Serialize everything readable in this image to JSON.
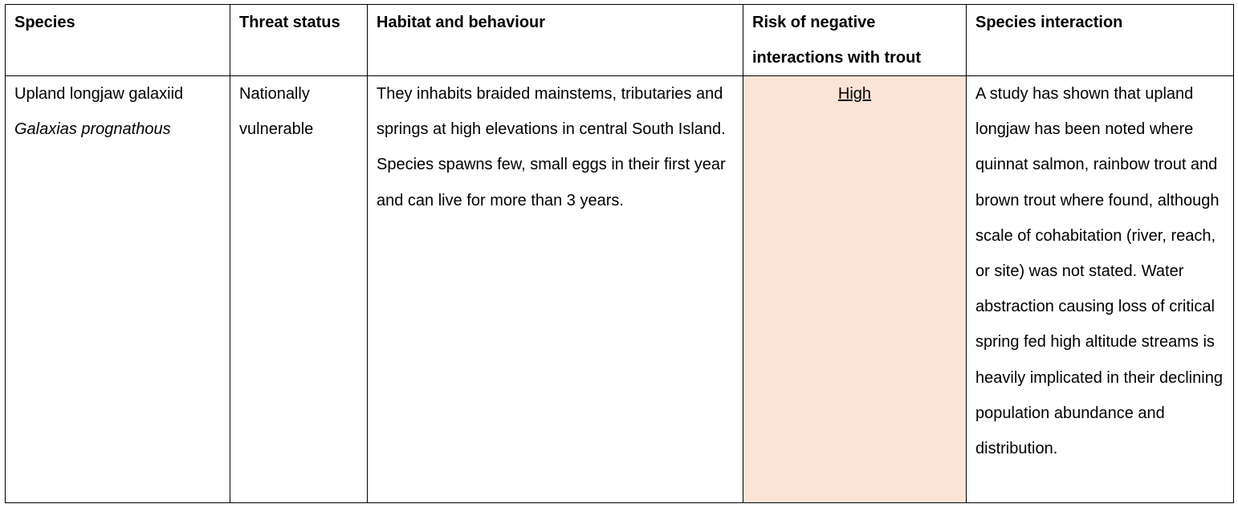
{
  "table": {
    "headers": {
      "species": "Species",
      "threat_status": "Threat status",
      "habitat": "Habitat and behaviour",
      "risk": "Risk of negative interactions with trout",
      "interaction": "Species interaction"
    },
    "rows": [
      {
        "common_name": "Upland longjaw galaxiid",
        "scientific_name": "Galaxias prognathous",
        "threat_status": "Nationally vulnerable",
        "habitat": "They inhabits braided mainstems, tributaries and springs at high elevations in central South Island. Species spawns few, small eggs in their first year and can live for more than 3 years.",
        "risk": "High",
        "interaction": "A study has shown that upland longjaw has been noted where quinnat salmon, rainbow trout and brown trout where found, although scale of cohabitation (river, reach, or site) was not stated. Water abstraction causing loss of critical spring fed high altitude streams is heavily implicated in their declining population abundance and distribution."
      }
    ]
  },
  "colors": {
    "risk_high_bg": "#fbe4d5",
    "border": "#000000"
  }
}
